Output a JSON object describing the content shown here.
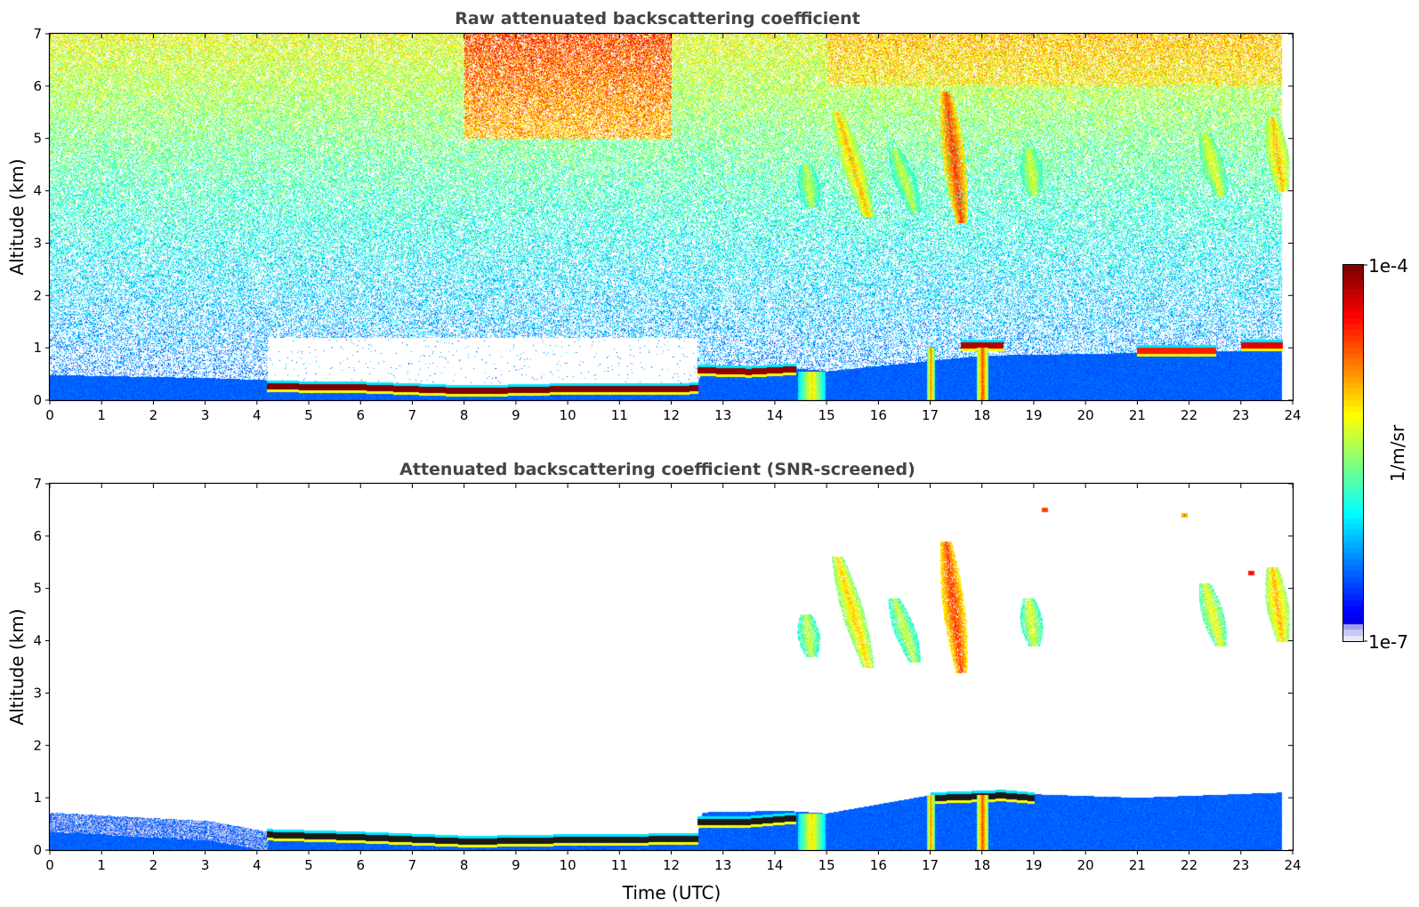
{
  "chart_data": [
    {
      "type": "heatmap",
      "title": "Raw attenuated backscattering coefficient",
      "xlabel": "",
      "ylabel": "Altitude (km)",
      "xlim": [
        0,
        24
      ],
      "ylim": [
        0,
        7
      ],
      "xticks": [
        "0",
        "1",
        "2",
        "3",
        "4",
        "5",
        "6",
        "7",
        "8",
        "9",
        "10",
        "11",
        "12",
        "13",
        "14",
        "15",
        "16",
        "17",
        "18",
        "19",
        "20",
        "21",
        "22",
        "23",
        "24"
      ],
      "yticks": [
        "0",
        "1",
        "2",
        "3",
        "4",
        "5",
        "6",
        "7"
      ],
      "noise_background": true,
      "features": [
        {
          "kind": "boundary_layer",
          "t": [
            0,
            3.1,
            4.2,
            8.1,
            12.5,
            12.6,
            14.2,
            15.0,
            17.0,
            18.0,
            21.0,
            23.8
          ],
          "top_km": [
            0.48,
            0.42,
            0.38,
            0.25,
            0.32,
            0.55,
            0.62,
            0.55,
            0.75,
            0.85,
            0.9,
            0.95
          ],
          "value": 0.22
        },
        {
          "kind": "cloud_base",
          "t": [
            4.2,
            6.0,
            8.1,
            10.0,
            12.5
          ],
          "alt_km": [
            0.27,
            0.25,
            0.18,
            0.22,
            0.23
          ],
          "value": 1.0
        },
        {
          "kind": "cloud_base",
          "t": [
            12.5,
            13.5,
            14.4
          ],
          "alt_km": [
            0.58,
            0.55,
            0.6
          ],
          "value": 0.98
        },
        {
          "kind": "cloud_base",
          "t": [
            17.6,
            18.4
          ],
          "alt_km": [
            1.05,
            1.05
          ],
          "value": 0.95
        },
        {
          "kind": "cloud_base",
          "t": [
            21.0,
            22.5
          ],
          "alt_km": [
            0.95,
            0.95
          ],
          "value": 0.85
        },
        {
          "kind": "cloud_base",
          "t": [
            23.0,
            23.8
          ],
          "alt_km": [
            1.05,
            1.05
          ],
          "value": 0.9
        },
        {
          "kind": "virga",
          "t_center": 14.7,
          "width_h": 0.5,
          "alt_range_km": [
            0,
            0.55
          ],
          "value": 0.65
        },
        {
          "kind": "virga",
          "t_center": 17.0,
          "width_h": 0.15,
          "alt_range_km": [
            0,
            1.0
          ],
          "value": 0.75
        },
        {
          "kind": "virga",
          "t_center": 18.0,
          "width_h": 0.2,
          "alt_range_km": [
            0,
            1.0
          ],
          "value": 0.8
        },
        {
          "kind": "fallstreak",
          "t_start": 15.8,
          "t_end": 15.2,
          "alt_range_km": [
            3.5,
            5.5
          ],
          "value": 0.7
        },
        {
          "kind": "fallstreak",
          "t_start": 14.7,
          "t_end": 14.6,
          "alt_range_km": [
            3.7,
            4.5
          ],
          "value": 0.58
        },
        {
          "kind": "fallstreak",
          "t_start": 16.7,
          "t_end": 16.3,
          "alt_range_km": [
            3.6,
            4.8
          ],
          "value": 0.58
        },
        {
          "kind": "fallstreak",
          "t_start": 17.6,
          "t_end": 17.3,
          "alt_range_km": [
            3.4,
            5.9
          ],
          "value": 0.82
        },
        {
          "kind": "fallstreak",
          "t_start": 19.0,
          "t_end": 18.9,
          "alt_range_km": [
            3.9,
            4.8
          ],
          "value": 0.6
        },
        {
          "kind": "fallstreak",
          "t_start": 22.6,
          "t_end": 22.3,
          "alt_range_km": [
            3.9,
            5.1
          ],
          "value": 0.62
        },
        {
          "kind": "fallstreak",
          "t_start": 23.8,
          "t_end": 23.6,
          "alt_range_km": [
            4.0,
            5.4
          ],
          "value": 0.7
        }
      ]
    },
    {
      "type": "heatmap",
      "title": "Attenuated backscattering coefficient (SNR-screened)",
      "xlabel": "Time (UTC)",
      "ylabel": "Altitude (km)",
      "xlim": [
        0,
        24
      ],
      "ylim": [
        0,
        7
      ],
      "xticks": [
        "0",
        "1",
        "2",
        "3",
        "4",
        "5",
        "6",
        "7",
        "8",
        "9",
        "10",
        "11",
        "12",
        "13",
        "14",
        "15",
        "16",
        "17",
        "18",
        "19",
        "20",
        "21",
        "22",
        "23",
        "24"
      ],
      "yticks": [
        "0",
        "1",
        "2",
        "3",
        "4",
        "5",
        "6",
        "7"
      ],
      "noise_background": false,
      "features": [
        {
          "kind": "boundary_layer",
          "t": [
            0,
            3.1,
            4.2,
            8.1,
            12.5,
            12.6,
            14.2,
            15.0,
            17.0,
            18.0,
            21.0,
            23.8
          ],
          "top_km": [
            0.72,
            0.55,
            0.35,
            0.25,
            0.3,
            0.72,
            0.75,
            0.7,
            1.05,
            1.1,
            1.0,
            1.1
          ],
          "value": 0.22
        },
        {
          "kind": "cloud_base",
          "t": [
            4.2,
            6.0,
            8.1,
            10.0,
            12.5
          ],
          "alt_km": [
            0.3,
            0.25,
            0.17,
            0.2,
            0.22
          ],
          "value": 0.0,
          "color": "#1a1a1a"
        },
        {
          "kind": "cloud_base",
          "t": [
            12.5,
            13.5,
            14.4
          ],
          "alt_km": [
            0.55,
            0.55,
            0.62
          ],
          "value": 0.0,
          "color": "#1a1a1a"
        },
        {
          "kind": "cloud_base",
          "t": [
            17.0,
            18.4,
            19.0
          ],
          "alt_km": [
            1.0,
            1.05,
            1.0
          ],
          "value": 0.0,
          "color": "#1a1a1a"
        },
        {
          "kind": "virga",
          "t_center": 14.7,
          "width_h": 0.5,
          "alt_range_km": [
            0,
            0.7
          ],
          "value": 0.65
        },
        {
          "kind": "virga",
          "t_center": 17.0,
          "width_h": 0.15,
          "alt_range_km": [
            0,
            1.05
          ],
          "value": 0.75
        },
        {
          "kind": "virga",
          "t_center": 18.0,
          "width_h": 0.2,
          "alt_range_km": [
            0,
            1.05
          ],
          "value": 0.8
        },
        {
          "kind": "fallstreak",
          "t_start": 15.8,
          "t_end": 15.2,
          "alt_range_km": [
            3.5,
            5.6
          ],
          "value": 0.68
        },
        {
          "kind": "fallstreak",
          "t_start": 14.7,
          "t_end": 14.6,
          "alt_range_km": [
            3.7,
            4.5
          ],
          "value": 0.58
        },
        {
          "kind": "fallstreak",
          "t_start": 16.7,
          "t_end": 16.3,
          "alt_range_km": [
            3.6,
            4.8
          ],
          "value": 0.58
        },
        {
          "kind": "fallstreak",
          "t_start": 17.6,
          "t_end": 17.3,
          "alt_range_km": [
            3.4,
            5.9
          ],
          "value": 0.82
        },
        {
          "kind": "fallstreak",
          "t_start": 19.0,
          "t_end": 18.9,
          "alt_range_km": [
            3.9,
            4.8
          ],
          "value": 0.6
        },
        {
          "kind": "fallstreak",
          "t_start": 22.6,
          "t_end": 22.3,
          "alt_range_km": [
            3.9,
            5.1
          ],
          "value": 0.62
        },
        {
          "kind": "fallstreak",
          "t_start": 23.8,
          "t_end": 23.6,
          "alt_range_km": [
            4.0,
            5.4
          ],
          "value": 0.7
        },
        {
          "kind": "speck",
          "t": 19.2,
          "alt_km": 6.5,
          "value": 0.8
        },
        {
          "kind": "speck",
          "t": 21.9,
          "alt_km": 6.4,
          "value": 0.7
        },
        {
          "kind": "speck",
          "t": 23.2,
          "alt_km": 5.3,
          "value": 0.85
        }
      ]
    }
  ],
  "colorbar": {
    "label": "1/m/sr",
    "max_label": "1e-4",
    "min_label": "1e-7",
    "scale": "log",
    "range": [
      1e-07,
      0.0001
    ],
    "colormap": "jet",
    "low_end_colors": [
      "#e8e8f8",
      "#c8c8f0",
      "#a0a0ec"
    ]
  }
}
